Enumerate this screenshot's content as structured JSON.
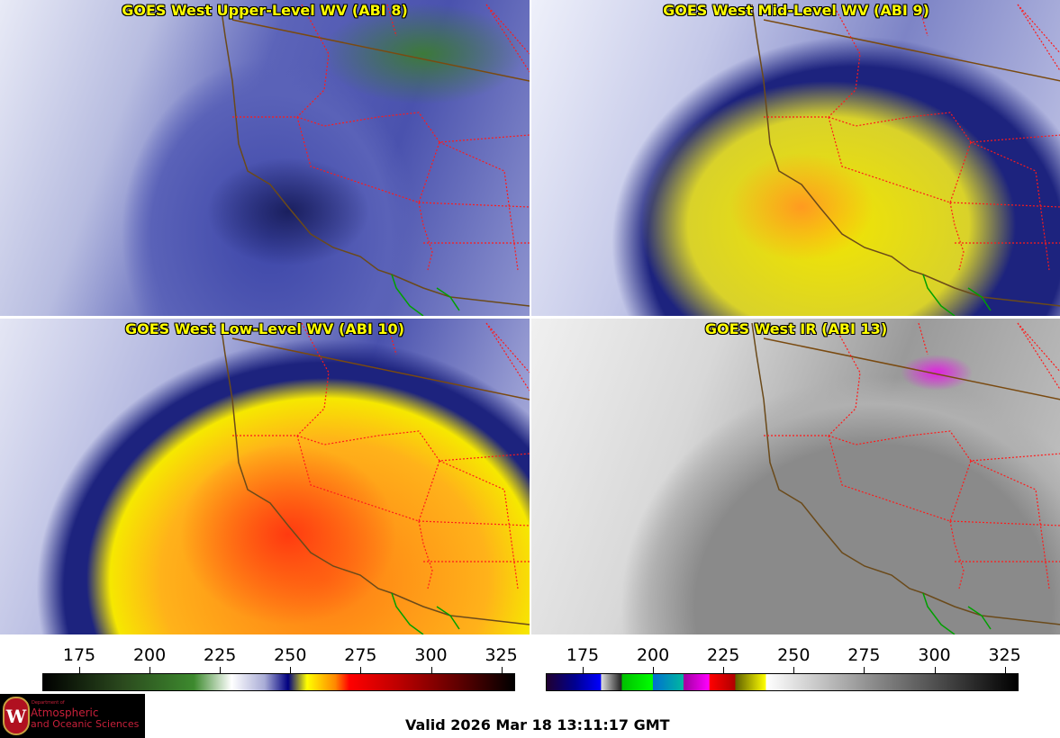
{
  "panels": [
    {
      "title": "GOES West Upper-Level WV (ABI 8)"
    },
    {
      "title": "GOES West Mid-Level WV (ABI 9)"
    },
    {
      "title": "GOES West Low-Level WV (ABI 10)"
    },
    {
      "title": "GOES West IR (ABI 13)"
    }
  ],
  "colorbars": [
    {
      "name": "water-vapor",
      "ticks": [
        "175",
        "200",
        "225",
        "250",
        "275",
        "300",
        "325"
      ]
    },
    {
      "name": "infrared",
      "ticks": [
        "175",
        "200",
        "225",
        "250",
        "275",
        "300",
        "325"
      ]
    }
  ],
  "logo": {
    "line1": "Department of",
    "line2": "Atmospheric",
    "line3": "and Oceanic Sciences",
    "seal": "W"
  },
  "valid_time": "Valid 2026 Mar 18 13:11:17 GMT",
  "colors": {
    "title": "#ffff00",
    "borders": "#ff0000",
    "coast": "#6b4a1a",
    "mexico": "#00a000"
  }
}
